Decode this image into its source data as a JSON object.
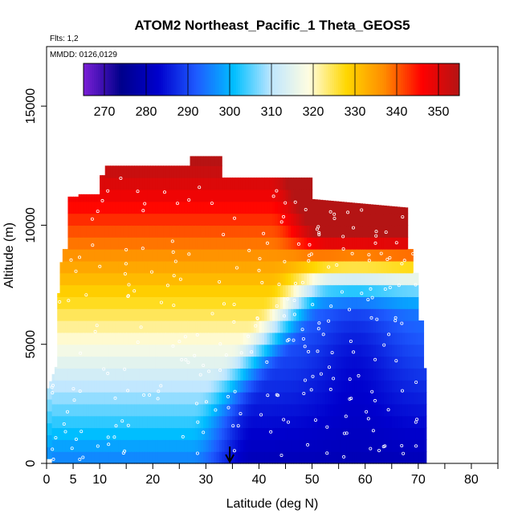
{
  "chart_data": {
    "type": "heatmap",
    "title": "ATOM2 Northeast_Pacific_1 Theta_GEOS5",
    "flights_label": "Flts: 1,2",
    "dates_label": "MMDD: 0126,0129",
    "xlabel": "Latitude (deg N)",
    "ylabel": "Altitude (m)",
    "xlim": [
      0,
      85
    ],
    "ylim": [
      0,
      17500
    ],
    "x_ticks": [
      0,
      5,
      10,
      20,
      30,
      40,
      50,
      60,
      70,
      80
    ],
    "x_minor_ticks": [
      15,
      25,
      35,
      45,
      55,
      65,
      75,
      85
    ],
    "y_ticks": [
      0,
      5000,
      10000,
      15000
    ],
    "colorbar": {
      "min": 265,
      "max": 355,
      "ticks": [
        270,
        280,
        290,
        300,
        310,
        320,
        330,
        340,
        350
      ],
      "colors": [
        "#7b1fd6",
        "#00008b",
        "#0000cd",
        "#1e5bff",
        "#00bfff",
        "#bfe6ff",
        "#fffde0",
        "#ffd700",
        "#ff8c00",
        "#ff0000",
        "#b41414"
      ]
    },
    "marker_latitude": 34.5,
    "colors": {
      "point_marker": "#ffffff",
      "arrow": "#000000",
      "frame": "#000000"
    }
  }
}
